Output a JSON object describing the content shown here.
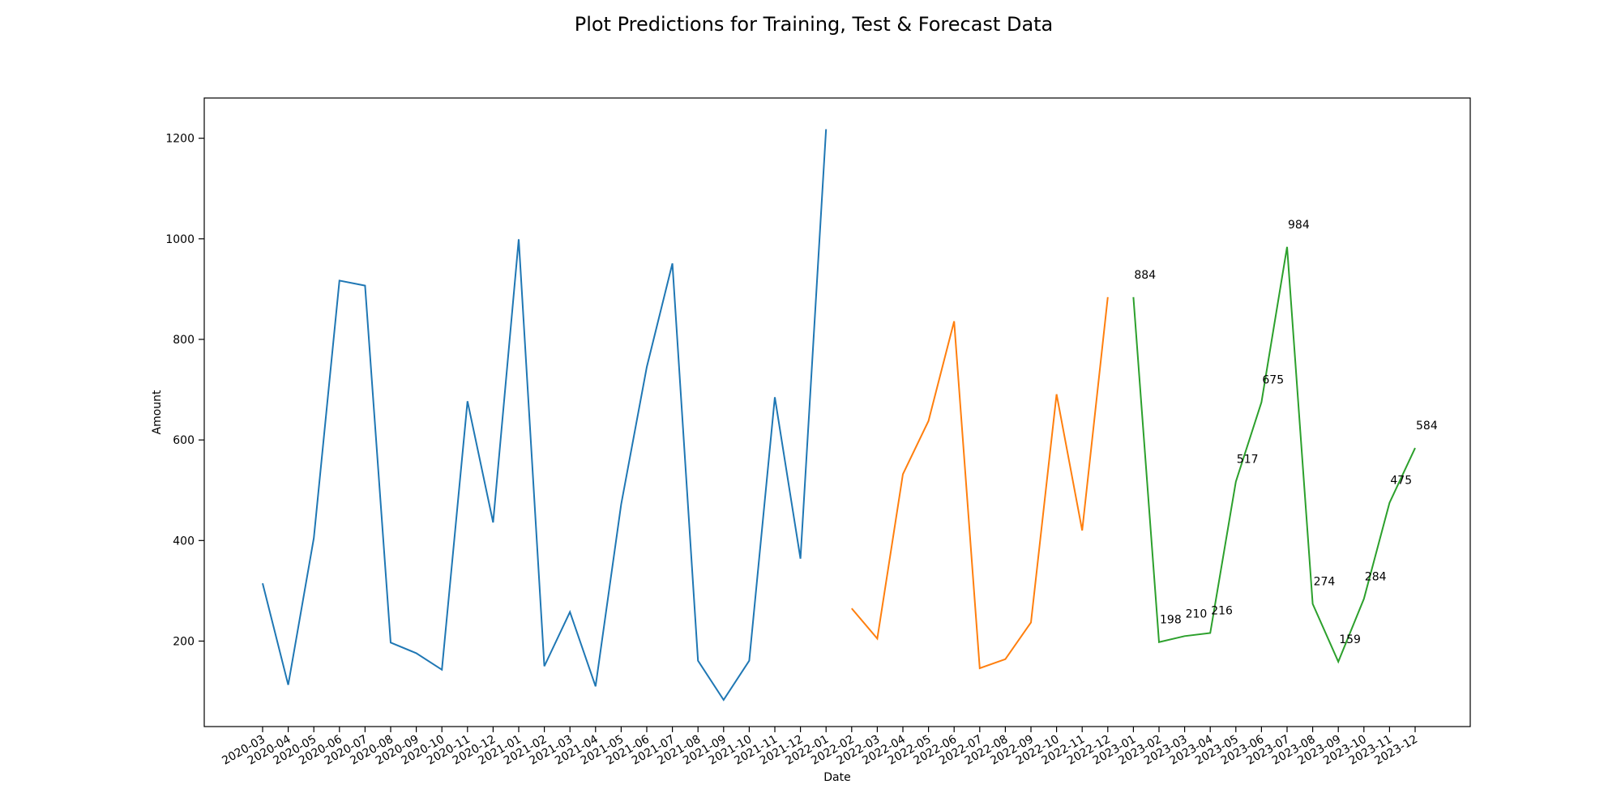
{
  "chart_data": {
    "type": "line",
    "title": "Plot Predictions for Training, Test & Forecast Data",
    "xlabel": "Date",
    "ylabel": "Amount",
    "ylim": [
      30,
      1280
    ],
    "yticks": [
      200,
      400,
      600,
      800,
      1000,
      1200
    ],
    "grid": false,
    "legend": "none",
    "x": [
      "2020-03",
      "2020-04",
      "2020-05",
      "2020-06",
      "2020-07",
      "2020-08",
      "2020-09",
      "2020-10",
      "2020-11",
      "2020-12",
      "2021-01",
      "2021-02",
      "2021-03",
      "2021-04",
      "2021-05",
      "2021-06",
      "2021-07",
      "2021-08",
      "2021-09",
      "2021-10",
      "2021-11",
      "2021-12",
      "2022-01",
      "2022-02",
      "2022-03",
      "2022-04",
      "2022-05",
      "2022-06",
      "2022-07",
      "2022-08",
      "2022-09",
      "2022-10",
      "2022-11",
      "2022-12",
      "2023-01",
      "2023-02",
      "2023-03",
      "2023-04",
      "2023-05",
      "2023-06",
      "2023-07",
      "2023-08",
      "2023-09",
      "2023-10",
      "2023-11",
      "2023-12"
    ],
    "series": [
      {
        "color": "#1f77b4",
        "labels_shown": false,
        "points": [
          [
            "2020-03",
            315
          ],
          [
            "2020-04",
            113
          ],
          [
            "2020-05",
            405
          ],
          [
            "2020-06",
            917
          ],
          [
            "2020-07",
            907
          ],
          [
            "2020-08",
            197
          ],
          [
            "2020-09",
            176
          ],
          [
            "2020-10",
            143
          ],
          [
            "2020-11",
            677
          ],
          [
            "2020-12",
            436
          ],
          [
            "2021-01",
            999
          ],
          [
            "2021-02",
            150
          ],
          [
            "2021-03",
            258
          ],
          [
            "2021-04",
            110
          ],
          [
            "2021-05",
            472
          ],
          [
            "2021-06",
            745
          ],
          [
            "2021-07",
            951
          ],
          [
            "2021-08",
            161
          ],
          [
            "2021-09",
            83
          ],
          [
            "2021-10",
            161
          ],
          [
            "2021-11",
            685
          ],
          [
            "2021-12",
            364
          ],
          [
            "2022-01",
            1218
          ]
        ]
      },
      {
        "color": "#ff7f0e",
        "labels_shown": false,
        "points": [
          [
            "2022-02",
            265
          ],
          [
            "2022-03",
            205
          ],
          [
            "2022-04",
            532
          ],
          [
            "2022-05",
            638
          ],
          [
            "2022-06",
            836
          ],
          [
            "2022-07",
            146
          ],
          [
            "2022-08",
            164
          ],
          [
            "2022-09",
            237
          ],
          [
            "2022-10",
            691
          ],
          [
            "2022-11",
            420
          ],
          [
            "2022-12",
            884
          ]
        ]
      },
      {
        "color": "#2ca02c",
        "labels_shown": true,
        "points": [
          [
            "2023-01",
            884
          ],
          [
            "2023-02",
            198
          ],
          [
            "2023-03",
            210
          ],
          [
            "2023-04",
            216
          ],
          [
            "2023-05",
            517
          ],
          [
            "2023-06",
            675
          ],
          [
            "2023-07",
            984
          ],
          [
            "2023-08",
            274
          ],
          [
            "2023-09",
            159
          ],
          [
            "2023-10",
            284
          ],
          [
            "2023-11",
            475
          ],
          [
            "2023-12",
            584
          ]
        ]
      }
    ]
  }
}
